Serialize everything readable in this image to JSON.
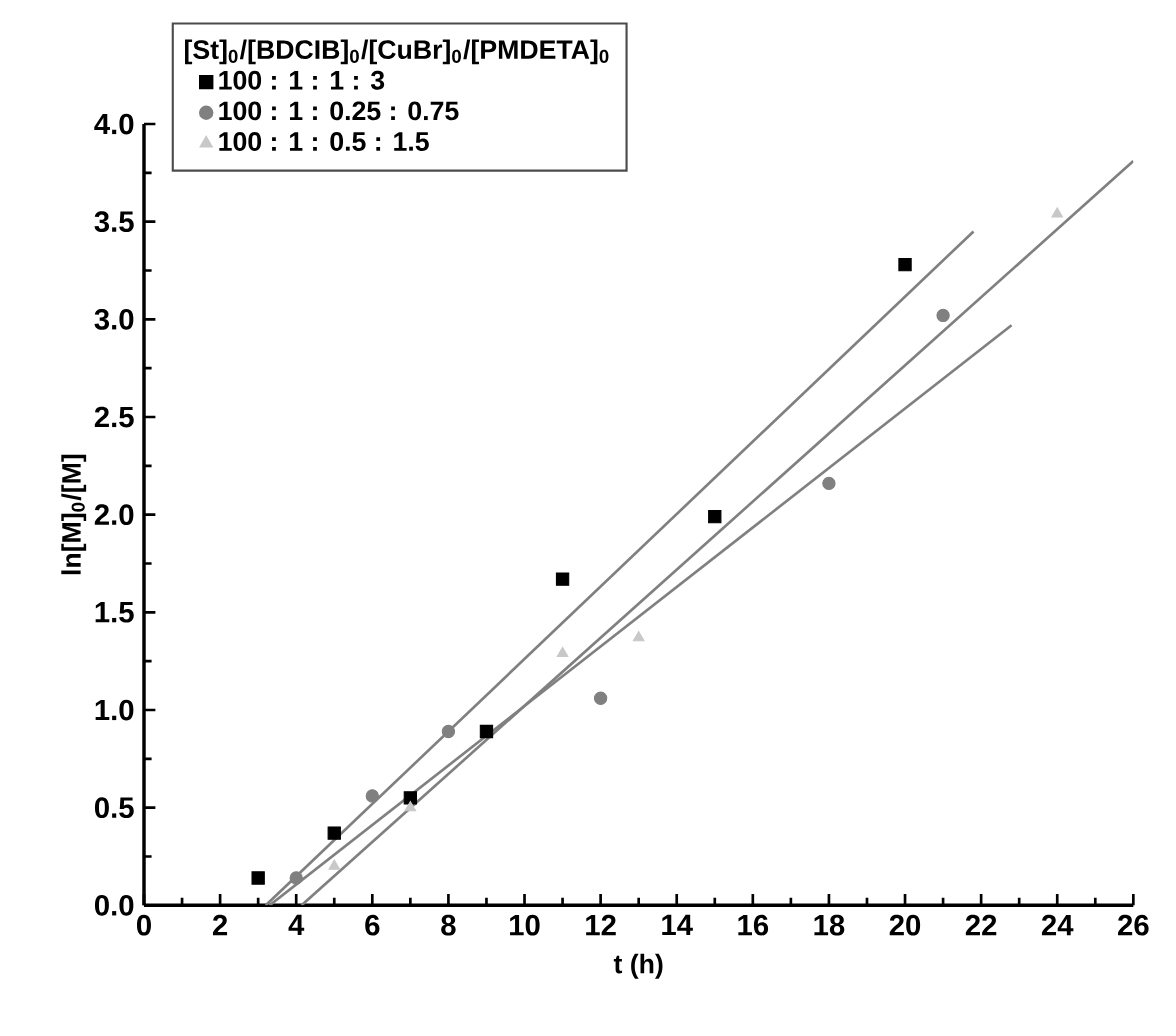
{
  "chart_data": {
    "type": "scatter",
    "xlabel": "t (h)",
    "ylabel": "ln[M]$_{0}$/[M]",
    "legend_title": "[St]$_{0}$/[BDCIB]$_{0}$/[CuBr]$_{0}$/[PMDETA]$_{0}$",
    "xlim": [
      0,
      26
    ],
    "ylim": [
      0,
      4
    ],
    "xticks": [
      0,
      2,
      4,
      6,
      8,
      10,
      12,
      14,
      16,
      18,
      20,
      22,
      24,
      26
    ],
    "yticks": [
      {
        "value": 0,
        "label": "0.0"
      },
      {
        "value": 0.5,
        "label": "0.5"
      },
      {
        "value": 1,
        "label": "1.0"
      },
      {
        "value": 1.5,
        "label": "1.5"
      },
      {
        "value": 2,
        "label": "2.0"
      },
      {
        "value": 2.5,
        "label": "2.5"
      },
      {
        "value": 3,
        "label": "3.0"
      },
      {
        "value": 3.5,
        "label": "3.5"
      },
      {
        "value": 4,
        "label": "4.0"
      }
    ],
    "legend": "top left",
    "series": [
      {
        "name": "100 : 1 : 1 : 3",
        "color": "#000000",
        "marker": "square",
        "x": [
          3,
          5,
          7,
          9,
          11,
          15,
          20
        ],
        "values": [
          0.14,
          0.37,
          0.55,
          0.89,
          1.67,
          1.99,
          3.28
        ]
      },
      {
        "name": "100 : 1 : 0.25 : 0.75",
        "color": "#808080",
        "marker": "circle",
        "x": [
          4,
          6,
          8,
          12,
          18,
          21
        ],
        "values": [
          0.14,
          0.56,
          0.89,
          1.06,
          2.16,
          3.02
        ]
      },
      {
        "name": "100 : 1 : 0.5 : 1.5",
        "color": "#c8c8c8",
        "marker": "triangle",
        "x": [
          5,
          7,
          11,
          13,
          24
        ],
        "values": [
          0.2,
          0.5,
          1.29,
          1.37,
          3.54
        ]
      },
      {
        "type": "line",
        "color": "#808080",
        "x": [
          3.2,
          21.8
        ],
        "values": [
          0,
          3.45
        ]
      },
      {
        "type": "line",
        "color": "#808080",
        "x": [
          3.3,
          22.8
        ],
        "values": [
          0,
          2.97
        ]
      },
      {
        "type": "line",
        "color": "#808080",
        "x": [
          4.14,
          26
        ],
        "values": [
          0,
          3.81
        ]
      }
    ]
  }
}
